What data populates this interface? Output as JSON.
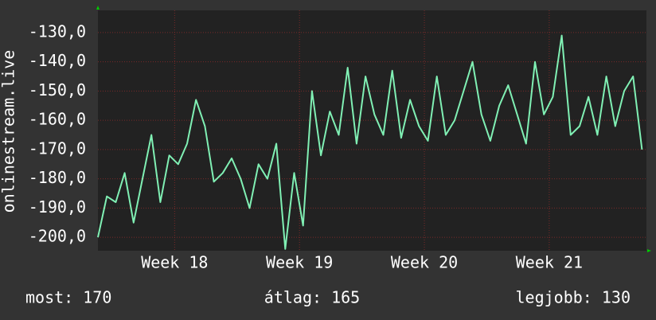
{
  "chart_data": {
    "type": "line",
    "y_label": "onlinestream.live",
    "x": [
      0,
      0.5,
      1,
      1.5,
      2,
      2.5,
      3,
      3.5,
      4,
      4.5,
      5,
      5.5,
      6,
      6.5,
      7,
      7.5,
      8,
      8.5,
      9,
      9.5,
      10,
      10.5,
      11,
      11.5,
      12,
      12.5,
      13,
      13.5,
      14,
      14.5,
      15,
      15.5,
      16,
      16.5,
      17,
      17.5,
      18,
      18.5,
      19,
      19.5,
      20,
      20.5,
      21,
      21.5,
      22,
      22.5,
      23,
      23.5,
      24,
      24.5,
      25,
      25.5,
      26,
      26.5,
      27,
      27.5,
      28,
      28.5,
      29,
      29.5,
      30,
      30.5
    ],
    "series": [
      {
        "color": "#80f0b4",
        "values": [
          -200,
          -186,
          -188,
          -178,
          -195,
          -180,
          -165,
          -188,
          -172,
          -175,
          -168,
          -153,
          -162,
          -181,
          -178,
          -173,
          -180,
          -190,
          -175,
          -180,
          -168,
          -204,
          -178,
          -196,
          -150,
          -172,
          -157,
          -165,
          -142,
          -168,
          -145,
          -158,
          -165,
          -143,
          -166,
          -153,
          -162,
          -167,
          -145,
          -165,
          -160,
          -150,
          -140,
          -158,
          -167,
          -155,
          -148,
          -158,
          -168,
          -140,
          -158,
          -152,
          -131,
          -165,
          -162,
          -152,
          -165,
          -145,
          -162,
          -150,
          -145,
          -170
        ]
      }
    ],
    "xlim": [
      0,
      30.75
    ],
    "ylim": [
      -204.6,
      -122.4
    ],
    "xticks": [
      {
        "value": 4.3,
        "label": "Week 18"
      },
      {
        "value": 11.3,
        "label": "Week 19"
      },
      {
        "value": 18.3,
        "label": "Week 20"
      },
      {
        "value": 25.3,
        "label": "Week 21"
      }
    ],
    "yticks": [
      {
        "value": -130,
        "label": "-130,0"
      },
      {
        "value": -140,
        "label": "-140,0"
      },
      {
        "value": -150,
        "label": "-150,0"
      },
      {
        "value": -160,
        "label": "-160,0"
      },
      {
        "value": -170,
        "label": "-170,0"
      },
      {
        "value": -180,
        "label": "-180,0"
      },
      {
        "value": -190,
        "label": "-190,0"
      },
      {
        "value": -200,
        "label": "-200,0"
      }
    ],
    "grid": true,
    "stats": [
      "most: 170",
      "átlag: 165",
      "legjobb: 130"
    ]
  }
}
